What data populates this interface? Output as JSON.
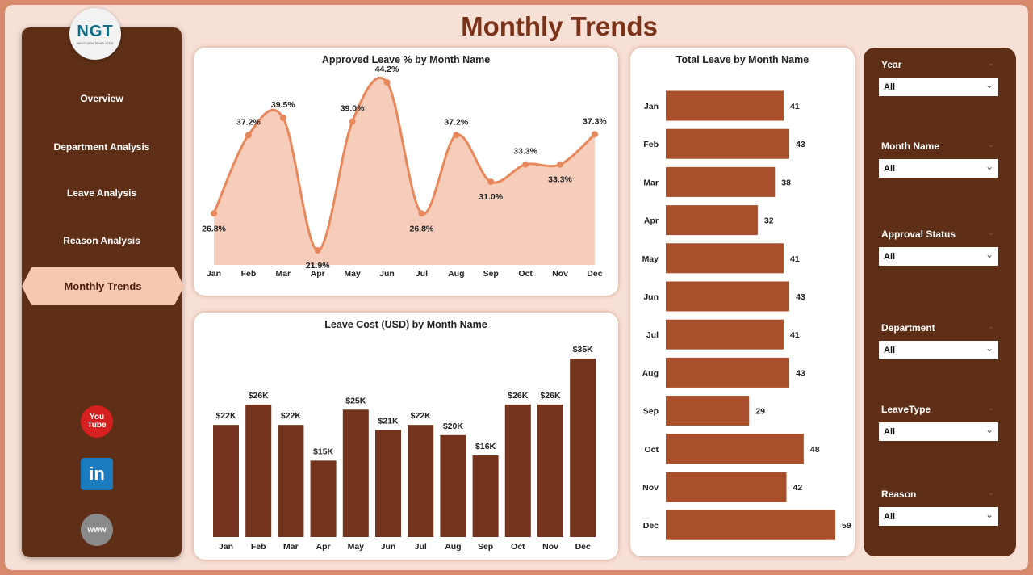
{
  "title": "Monthly Trends",
  "logo": {
    "text": "NGT",
    "sub": "NEXT GEN TEMPLATES"
  },
  "nav": [
    {
      "label": "Overview"
    },
    {
      "label": "Department Analysis"
    },
    {
      "label": "Leave Analysis"
    },
    {
      "label": "Reason Analysis"
    },
    {
      "label": "Monthly Trends",
      "active": true
    }
  ],
  "social": [
    {
      "icon": "youtube-icon",
      "label": "You Tube"
    },
    {
      "icon": "linkedin-icon",
      "label": "in"
    },
    {
      "icon": "website-icon",
      "label": "www"
    }
  ],
  "colors": {
    "sidebar": "#5e2e16",
    "line": "#e8875a",
    "area": "#f6cdbb",
    "cost_bar": "#74331c",
    "total_bar": "#a94f2b",
    "active_nav": "#f6c8b0"
  },
  "chart_data": [
    {
      "type": "area",
      "title": "Approved Leave % by Month Name",
      "categories": [
        "Jan",
        "Feb",
        "Mar",
        "Apr",
        "May",
        "Jun",
        "Jul",
        "Aug",
        "Sep",
        "Oct",
        "Nov",
        "Dec"
      ],
      "values": [
        26.8,
        37.2,
        39.5,
        21.9,
        39.0,
        44.2,
        26.8,
        37.2,
        31.0,
        33.3,
        33.3,
        37.3
      ],
      "labels": [
        "26.8%",
        "37.2%",
        "39.5%",
        "21.9%",
        "39.0%",
        "44.2%",
        "26.8%",
        "37.2%",
        "31.0%",
        "33.3%",
        "33.3%",
        "37.3%"
      ]
    },
    {
      "type": "bar",
      "title": "Leave Cost (USD) by Month Name",
      "categories": [
        "Jan",
        "Feb",
        "Mar",
        "Apr",
        "May",
        "Jun",
        "Jul",
        "Aug",
        "Sep",
        "Oct",
        "Nov",
        "Dec"
      ],
      "values": [
        22,
        26,
        22,
        15,
        25,
        21,
        22,
        20,
        16,
        26,
        26,
        35
      ],
      "labels": [
        "$22K",
        "$26K",
        "$22K",
        "$15K",
        "$25K",
        "$21K",
        "$22K",
        "$20K",
        "$16K",
        "$26K",
        "$26K",
        "$35K"
      ],
      "unit": "K USD"
    },
    {
      "type": "bar",
      "orientation": "horizontal",
      "title": "Total Leave by Month Name",
      "categories": [
        "Jan",
        "Feb",
        "Mar",
        "Apr",
        "May",
        "Jun",
        "Jul",
        "Aug",
        "Sep",
        "Oct",
        "Nov",
        "Dec"
      ],
      "values": [
        41,
        43,
        38,
        32,
        41,
        43,
        41,
        43,
        29,
        48,
        42,
        59
      ]
    }
  ],
  "filters": [
    {
      "label": "Year",
      "value": "All"
    },
    {
      "label": "Month Name",
      "value": "All"
    },
    {
      "label": "Approval Status",
      "value": "All"
    },
    {
      "label": "Department",
      "value": "All"
    },
    {
      "label": "LeaveType",
      "value": "All"
    },
    {
      "label": "Reason",
      "value": "All"
    }
  ]
}
